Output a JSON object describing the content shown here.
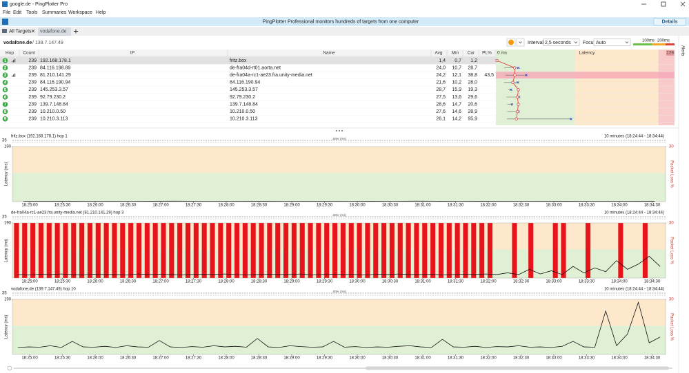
{
  "window": {
    "title": "google.de - PingPlotter Pro"
  },
  "menu": [
    "File",
    "Edit",
    "Tools",
    "Summaries",
    "Workspace",
    "Help"
  ],
  "banner": {
    "text": "PingPlotter Professional monitors hundreds of targets from one computer",
    "button": "Details"
  },
  "tabs": [
    "All Targets",
    "vodafone.de"
  ],
  "target": {
    "name": "vodafone.de",
    "ip": "/ 139.7.147.49"
  },
  "toolbar": {
    "interval_label": "Interval",
    "interval": "2,5 seconds",
    "focus_label": "Focus",
    "focus": "Auto",
    "legend": [
      "100ms",
      "200ms"
    ]
  },
  "side_panel": "Alerts",
  "table": {
    "columns": [
      "Hop",
      "Count",
      "IP",
      "Name",
      "Avg",
      "Min",
      "Cur",
      "PL%"
    ],
    "latency_header": {
      "start": "0 ms",
      "title": "Latency",
      "max": 228
    },
    "rows": [
      {
        "hop": 1,
        "count": 239,
        "ip": "192.168.178.1",
        "name": "fritz.box",
        "avg": {
          "value": 1.4,
          "label": "1,4"
        },
        "min": {
          "value": 0.7,
          "label": "0,7"
        },
        "cur": {
          "value": 1.2,
          "label": "1,2"
        },
        "selected": true,
        "graphed": true
      },
      {
        "hop": 2,
        "count": 239,
        "ip": "84.116.198.89",
        "name": "de-fra04d-rt01.aorta.net",
        "avg": {
          "value": 24.0,
          "label": "24,0"
        },
        "min": {
          "value": 10.7,
          "label": "10,7"
        },
        "cur": {
          "value": 28.7,
          "label": "28,7"
        }
      },
      {
        "hop": 3,
        "count": 239,
        "ip": "81.210.141.29",
        "name": "de-fra04a-rc1-ae23.fra.unity-media.net",
        "avg": {
          "value": 24.2,
          "label": "24,2"
        },
        "min": {
          "value": 12.1,
          "label": "12,1"
        },
        "cur": {
          "value": 38.8,
          "label": "38,8"
        },
        "pl": {
          "value": 43.5,
          "label": "43,5"
        },
        "graphed": true
      },
      {
        "hop": 4,
        "count": 239,
        "ip": "84.116.190.94",
        "name": "84.116.190.94",
        "avg": {
          "value": 21.6,
          "label": "21,6"
        },
        "min": {
          "value": 10.2,
          "label": "10,2"
        },
        "cur": {
          "value": 28.0,
          "label": "28,0"
        }
      },
      {
        "hop": 5,
        "count": 239,
        "ip": "145.253.3.57",
        "name": "145.253.3.57",
        "avg": {
          "value": 28.7,
          "label": "28,7"
        },
        "min": {
          "value": 15.9,
          "label": "15,9"
        },
        "cur": {
          "value": 19.3,
          "label": "19,3"
        }
      },
      {
        "hop": 6,
        "count": 239,
        "ip": "92.79.230.2",
        "name": "92.79.230.2",
        "avg": {
          "value": 27.5,
          "label": "27,5"
        },
        "min": {
          "value": 13.6,
          "label": "13,6"
        },
        "cur": {
          "value": 29.6,
          "label": "29,6"
        }
      },
      {
        "hop": 7,
        "count": 239,
        "ip": "139.7.148.84",
        "name": "139.7.148.84",
        "avg": {
          "value": 28.6,
          "label": "28,6"
        },
        "min": {
          "value": 14.7,
          "label": "14,7"
        },
        "cur": {
          "value": 20.6,
          "label": "20,6"
        }
      },
      {
        "hop": 8,
        "count": 239,
        "ip": "10.210.0.50",
        "name": "10.210.0.50",
        "avg": {
          "value": 27.6,
          "label": "27,6"
        },
        "min": {
          "value": 14.6,
          "label": "14,6"
        },
        "cur": {
          "value": 28.9,
          "label": "28,9"
        }
      },
      {
        "hop": 9,
        "count": 239,
        "ip": "10.210.3.113",
        "name": "10.210.3.113",
        "avg": {
          "value": 26.1,
          "label": "26,1"
        },
        "min": {
          "value": 14.2,
          "label": "14,2"
        },
        "cur": {
          "value": 95.9,
          "label": "95,9"
        }
      }
    ]
  },
  "graphs": [
    {
      "title": "fritz.box (192.168.178.1) hop 1",
      "range": "10 minutes (18:24:44 - 18:34:44)",
      "y_label": "Latency (ms)",
      "y2_label": "Packet Loss %",
      "jitter_label": "Jitter (ms)",
      "jitter_tick": 35,
      "ylim": [
        0,
        190
      ],
      "yticks": [
        190
      ],
      "y2lim": [
        0,
        30
      ],
      "y2ticks": [
        30
      ],
      "xticks": [
        "18:25:00",
        "18:25:30",
        "18:26:00",
        "18:26:30",
        "18:27:00",
        "18:27:30",
        "18:28:00",
        "18:28:30",
        "18:29:00",
        "18:29:30",
        "18:30:00",
        "18:30:30",
        "18:31:00",
        "18:31:30",
        "18:32:00",
        "18:32:30",
        "18:33:00",
        "18:33:30",
        "18:34:00",
        "18:34:30"
      ],
      "latency": [
        1.2,
        1.4,
        1.3,
        1.1,
        1.5,
        1.2,
        1.3,
        1.6,
        1.2,
        1.1,
        1.4,
        1.3,
        1.2,
        1.5,
        1.4,
        1.2,
        1.3,
        1.1,
        1.6,
        1.4,
        1.2,
        1.3,
        1.5,
        1.2,
        1.4,
        1.3,
        1.1,
        1.2,
        1.4,
        1.3
      ]
    },
    {
      "title": "de-fra04a-rc1-ae23.fra.unity-media.net (81.210.141.29) hop 3",
      "range": "10 minutes (18:24:44 - 18:34:44)",
      "y_label": "Latency (ms)",
      "y2_label": "Packet Loss %",
      "jitter_label": "Jitter (ms)",
      "jitter_tick": 35,
      "ylim": [
        0,
        190
      ],
      "yticks": [
        190
      ],
      "y2lim": [
        0,
        30
      ],
      "y2ticks": [
        30
      ],
      "xticks": [
        "18:25:00",
        "18:25:30",
        "18:26:00",
        "18:26:30",
        "18:27:00",
        "18:27:30",
        "18:28:00",
        "18:28:30",
        "18:29:00",
        "18:29:30",
        "18:30:00",
        "18:30:30",
        "18:31:00",
        "18:31:30",
        "18:32:00",
        "18:32:30",
        "18:33:00",
        "18:33:30",
        "18:34:00",
        "18:34:30"
      ],
      "latency": [
        12,
        11,
        13,
        12,
        14,
        12,
        11,
        13,
        12,
        12,
        11,
        14,
        12,
        13,
        12,
        11,
        12,
        13,
        12,
        14,
        12,
        11,
        12,
        13,
        12,
        12,
        14,
        11,
        12,
        13,
        12,
        12,
        11,
        13,
        12,
        14,
        12,
        12,
        13,
        11,
        12,
        13,
        12,
        14,
        12,
        18,
        12,
        30,
        14,
        25,
        12,
        40,
        18,
        35,
        22,
        60,
        30,
        48,
        75,
        40
      ],
      "loss": [
        30,
        30,
        30,
        30,
        30,
        30,
        30,
        30,
        30,
        30,
        30,
        30,
        30,
        30,
        30,
        30,
        30,
        30,
        30,
        30,
        30,
        30,
        30,
        30,
        30,
        30,
        30,
        30,
        30,
        30,
        30,
        30,
        30,
        30,
        30,
        30,
        30,
        30,
        30,
        30,
        30,
        30,
        30,
        30,
        30,
        30,
        30,
        30,
        30,
        30,
        30,
        30,
        30,
        30,
        30,
        30,
        30,
        30,
        30,
        0,
        0,
        30,
        0,
        30,
        0,
        0,
        30,
        30,
        0,
        0,
        30,
        0,
        0,
        0,
        30,
        0,
        0,
        30,
        0,
        0
      ]
    },
    {
      "title": "vodafone.de (139.7.147.49) hop 10",
      "range": "10 minutes (18:24:44 - 18:34:44)",
      "y_label": "Latency (ms)",
      "y2_label": "Packet Loss %",
      "jitter_label": "Jitter (ms)",
      "jitter_tick": 35,
      "ylim": [
        0,
        190
      ],
      "yticks": [
        190
      ],
      "y2lim": [
        0,
        30
      ],
      "y2ticks": [
        30
      ],
      "xticks": [
        "18:25:00",
        "18:25:30",
        "18:26:00",
        "18:26:30",
        "18:27:00",
        "18:27:30",
        "18:28:00",
        "18:28:30",
        "18:29:00",
        "18:29:30",
        "18:30:00",
        "18:30:30",
        "18:31:00",
        "18:31:30",
        "18:32:00",
        "18:32:30",
        "18:33:00",
        "18:33:30",
        "18:34:00",
        "18:34:30"
      ],
      "latency": [
        24,
        26,
        25,
        30,
        24,
        45,
        26,
        25,
        28,
        24,
        30,
        26,
        25,
        48,
        26,
        24,
        27,
        25,
        30,
        26,
        28,
        25,
        55,
        26,
        24,
        30,
        27,
        25,
        26,
        45,
        25,
        27,
        24,
        26,
        25,
        28,
        30,
        26,
        24,
        52,
        26,
        25,
        28,
        24,
        27,
        26,
        30,
        25,
        26,
        24,
        28,
        45,
        26,
        25,
        150,
        30,
        70,
        180,
        40,
        60
      ]
    }
  ]
}
